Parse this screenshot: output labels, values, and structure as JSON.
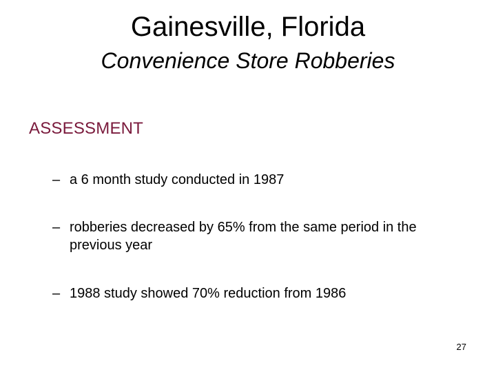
{
  "slide": {
    "title": "Gainesville, Florida",
    "subtitle": "Convenience Store Robberies",
    "section_heading": "ASSESSMENT",
    "bullet_marker": "–",
    "bullets": [
      "a 6 month study conducted in 1987",
      "robberies decreased by 65% from the same period in the previous year",
      "1988 study showed 70% reduction from 1986"
    ],
    "page_number": "27"
  },
  "colors": {
    "background": "#ffffff",
    "text": "#000000",
    "heading_accent": "#7a1a3c"
  }
}
